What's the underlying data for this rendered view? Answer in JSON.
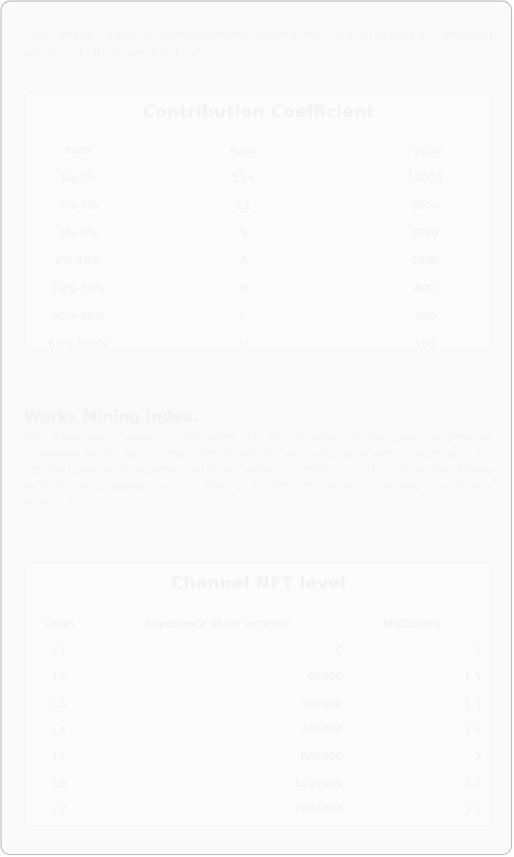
{
  "intro": "The work level is determined based on the historical ranking of \"Contribution Factor\".",
  "contribution": {
    "title": "Contribution Coefficient",
    "headers": [
      "Rank",
      "Rank",
      "Factor"
    ],
    "rows": [
      [
        "Top1%",
        "S1+",
        "10000"
      ],
      [
        "1%-3%",
        "S1",
        "6000"
      ],
      [
        "3%-6%",
        "S",
        "3000"
      ],
      [
        "6%-10%",
        "A",
        "1000"
      ],
      [
        "10%-30%",
        "B",
        "600"
      ],
      [
        "30%-60%",
        "C",
        "300"
      ],
      [
        "60%-100%",
        "D",
        "100"
      ]
    ]
  },
  "mining": {
    "heading": "Works Mining Index:",
    "body": "The experience value is calculated as the duration of exclusive cooperation multiplied by the base number for mining the work; exclusive works count as 1. If a non-exclusive work becomes exclusive within a month, it counts as 0.66, decreasing by 0.03 every additional month. After 12 months, the value for creating an exclusive work is 0.3."
  },
  "channel": {
    "title": "Channel NFT level",
    "headers": [
      "Level",
      "Experience Value Increase",
      "Multipliers"
    ],
    "rows": [
      [
        "L1",
        "0",
        "1"
      ],
      [
        "L2",
        "60000",
        "1.1"
      ],
      [
        "L3",
        "100000",
        "1.3"
      ],
      [
        "L4",
        "300000",
        "1.6"
      ],
      [
        "L5",
        "600000",
        "2"
      ],
      [
        "L6",
        "1000000",
        "2.5"
      ],
      [
        "L7",
        "1600000",
        "3.1"
      ]
    ]
  }
}
